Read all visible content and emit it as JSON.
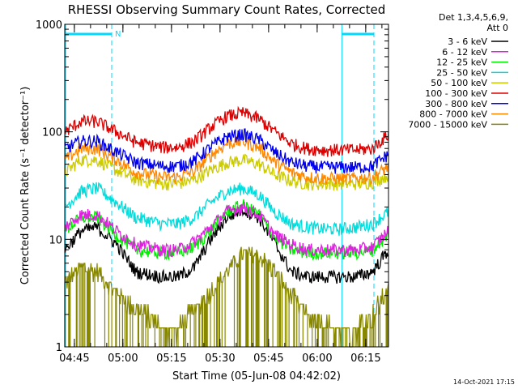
{
  "chart_data": {
    "type": "line",
    "title": "RHESSI Observing Summary Count Rates, Corrected",
    "xlabel": "Start Time (05-Jun-08 04:42:02)",
    "ylabel": "Corrected Count Rate (s⁻¹ detector⁻¹)",
    "yscale": "log",
    "ylim": [
      1,
      1000
    ],
    "xlim_minutes": [
      0,
      100
    ],
    "x_start": "04:42:02",
    "x_ticks": [
      "04:45",
      "05:00",
      "05:15",
      "05:30",
      "05:45",
      "06:00",
      "06:15"
    ],
    "y_ticks": [
      "1",
      "10",
      "100",
      "1000"
    ],
    "legend_header": [
      "Det 1,3,4,5,6,9,",
      "Att 0"
    ],
    "legend_position": "right",
    "timestamp": "14-Oct-2021 17:15",
    "night_flag_label": "N",
    "markers": {
      "dashed_lines_minutes": [
        14.5,
        95.5
      ],
      "solid_lines_minutes": [
        0,
        85.6
      ],
      "flag_bars_minutes": [
        [
          0,
          14.5
        ],
        [
          85.6,
          95.5
        ]
      ]
    },
    "series": [
      {
        "name": "3 - 6 keV",
        "color": "#000000",
        "x": [
          0,
          5,
          10,
          16,
          22,
          30,
          35,
          40,
          45,
          50,
          55,
          60,
          65,
          70,
          75,
          80,
          85,
          90,
          95,
          100
        ],
        "y": [
          8,
          12,
          13,
          9,
          5,
          4.5,
          4.5,
          5.5,
          10,
          16,
          19,
          16,
          9,
          5,
          4.5,
          4.5,
          4.5,
          4.5,
          5,
          8
        ]
      },
      {
        "name": "6 - 12 keV",
        "color": "#e020e0",
        "x": [
          0,
          5,
          10,
          16,
          22,
          30,
          35,
          40,
          45,
          50,
          55,
          60,
          65,
          70,
          75,
          80,
          85,
          90,
          95,
          100
        ],
        "y": [
          13,
          17,
          17,
          12,
          9,
          8,
          8,
          9.5,
          13,
          18,
          20,
          17,
          11,
          9,
          8,
          8,
          8,
          8,
          8.5,
          12
        ]
      },
      {
        "name": "12 - 25 keV",
        "color": "#00ee00",
        "x": [
          0,
          5,
          10,
          16,
          22,
          30,
          35,
          40,
          45,
          50,
          55,
          60,
          65,
          70,
          75,
          80,
          85,
          90,
          95,
          100
        ],
        "y": [
          12,
          16,
          16,
          11,
          8,
          7.5,
          7.5,
          8.5,
          12,
          18,
          21,
          17,
          10.5,
          8,
          7.5,
          7.5,
          7.5,
          7.5,
          8,
          11
        ]
      },
      {
        "name": "25 - 50 keV",
        "color": "#00dddd",
        "x": [
          0,
          5,
          10,
          16,
          22,
          30,
          35,
          40,
          45,
          50,
          55,
          60,
          65,
          70,
          75,
          80,
          85,
          90,
          95,
          100
        ],
        "y": [
          20,
          28,
          30,
          22,
          16,
          14,
          14,
          16,
          22,
          28,
          30,
          26,
          18,
          14,
          13,
          12.5,
          12.5,
          13,
          14,
          18
        ]
      },
      {
        "name": "50 - 100 keV",
        "color": "#cccc00",
        "x": [
          0,
          5,
          10,
          16,
          22,
          30,
          35,
          40,
          45,
          50,
          55,
          60,
          65,
          70,
          75,
          80,
          85,
          90,
          95,
          100
        ],
        "y": [
          42,
          55,
          55,
          44,
          36,
          33,
          33,
          36,
          44,
          52,
          55,
          50,
          40,
          35,
          33,
          33,
          33,
          33,
          34,
          40
        ]
      },
      {
        "name": "100 - 300 keV",
        "color": "#dd0000",
        "x": [
          0,
          5,
          10,
          16,
          22,
          30,
          35,
          40,
          45,
          50,
          55,
          60,
          65,
          70,
          75,
          80,
          85,
          90,
          95,
          100
        ],
        "y": [
          100,
          125,
          125,
          100,
          80,
          72,
          72,
          82,
          110,
          140,
          150,
          132,
          100,
          78,
          70,
          68,
          68,
          68,
          70,
          95
        ]
      },
      {
        "name": "300 - 800 keV",
        "color": "#0000ee",
        "x": [
          0,
          5,
          10,
          16,
          22,
          30,
          35,
          40,
          45,
          50,
          55,
          60,
          65,
          70,
          75,
          80,
          85,
          90,
          95,
          100
        ],
        "y": [
          70,
          82,
          82,
          65,
          52,
          48,
          48,
          54,
          72,
          90,
          95,
          85,
          64,
          52,
          48,
          47,
          47,
          47,
          48,
          62
        ]
      },
      {
        "name": "800 - 7000 keV",
        "color": "#ff8800",
        "x": [
          0,
          5,
          10,
          16,
          22,
          30,
          35,
          40,
          45,
          50,
          55,
          60,
          65,
          70,
          75,
          80,
          85,
          90,
          95,
          100
        ],
        "y": [
          55,
          70,
          70,
          55,
          42,
          38,
          38,
          43,
          60,
          78,
          82,
          72,
          52,
          42,
          38,
          37,
          37,
          37,
          38,
          48
        ]
      },
      {
        "name": "7000 - 15000 keV",
        "color": "#888800",
        "x": [
          0,
          5,
          10,
          15,
          20,
          25,
          30,
          35,
          40,
          45,
          50,
          55,
          60,
          65,
          70,
          75,
          80,
          85,
          90,
          95,
          100
        ],
        "y": [
          4,
          5.5,
          5,
          3.5,
          2.5,
          2,
          1.5,
          1.5,
          2.2,
          3.2,
          5,
          7.5,
          7,
          5,
          3,
          2,
          1.5,
          1.5,
          1.5,
          2,
          3.5
        ]
      }
    ]
  }
}
